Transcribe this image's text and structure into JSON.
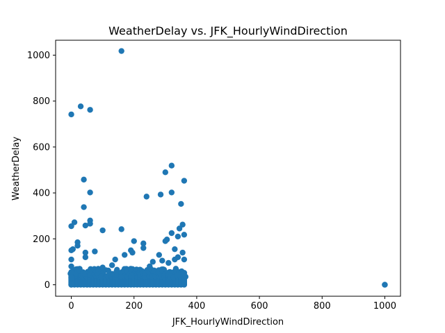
{
  "chart_data": {
    "type": "scatter",
    "title": "WeatherDelay vs. JFK_HourlyWindDirection",
    "xlabel": "JFK_HourlyWindDirection",
    "ylabel": "WeatherDelay",
    "xlim": [
      -50,
      1050
    ],
    "ylim": [
      -50,
      1065
    ],
    "xticks": [
      0,
      200,
      400,
      600,
      800,
      1000
    ],
    "yticks": [
      0,
      200,
      400,
      600,
      800,
      1000
    ],
    "grid": false,
    "legend": "none",
    "marker_color": "#1f77b4",
    "series": [
      {
        "x": [
          160,
          30,
          0,
          60,
          320,
          300,
          40,
          360,
          60,
          320,
          285,
          240,
          350,
          40,
          60,
          0,
          10,
          45,
          60,
          100,
          160,
          355,
          345,
          360,
          320,
          300,
          340,
          305,
          20,
          5,
          0,
          20,
          75,
          45,
          330,
          200,
          230,
          190,
          195,
          170,
          230,
          250,
          260,
          280,
          290,
          310,
          330,
          340,
          355,
          360,
          45,
          130,
          140,
          100,
          0,
          0,
          0,
          0,
          0,
          1000,
          1000
        ],
        "y": [
          1018,
          777,
          742,
          762,
          519,
          490,
          458,
          453,
          402,
          402,
          393,
          384,
          352,
          338,
          280,
          255,
          272,
          258,
          266,
          237,
          242,
          262,
          245,
          218,
          225,
          190,
          210,
          197,
          185,
          155,
          150,
          170,
          145,
          140,
          155,
          190,
          180,
          150,
          140,
          130,
          160,
          80,
          100,
          130,
          105,
          95,
          110,
          120,
          140,
          110,
          120,
          85,
          110,
          75,
          110,
          80,
          55,
          30,
          0,
          0,
          0
        ]
      }
    ],
    "dense_band": {
      "x_range": [
        0,
        360
      ],
      "y_range": [
        0,
        70
      ],
      "x_step": 10
    }
  }
}
